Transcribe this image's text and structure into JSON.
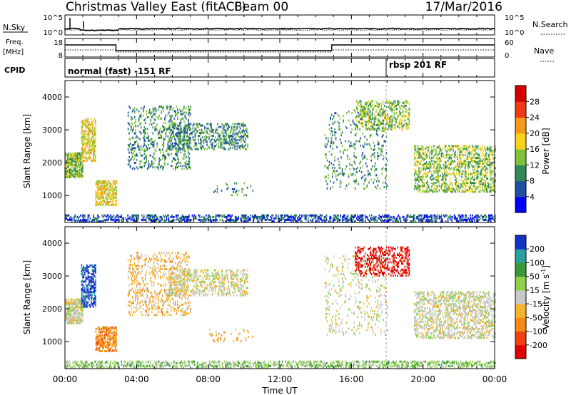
{
  "header": {
    "title": "Christmas Valley East (fitACF)",
    "beam": "Beam 00",
    "date": "17/Mar/2016"
  },
  "sky_panel": {
    "label": "N.Sky",
    "y_top": "10^5",
    "y_bottom": "10^0",
    "right_label": "N.Search",
    "right_top": "10^5",
    "right_bottom": "10^0"
  },
  "freq_panel": {
    "label_line1": "Freq.",
    "label_line2": "[MHz]",
    "y_top": "18",
    "y_bottom": "8",
    "right_label": "Nave",
    "right_top": "60",
    "right_bottom": "0"
  },
  "cpid_panel": {
    "label": "CPID",
    "mode_1": "normal (fast) -151 RF",
    "mode_2": "rbsp 201 RF"
  },
  "chart_data": [
    {
      "type": "heatmap",
      "name": "power",
      "ylabel": "Slant Range [km]",
      "yticks": [
        "1000",
        "2000",
        "3000",
        "4000"
      ],
      "ylim": [
        180,
        4500
      ],
      "xlim": [
        0,
        24
      ],
      "colorbar": {
        "label": "Power [dB]",
        "ticks": [
          "4",
          "8",
          "12",
          "16",
          "20",
          "24",
          "28"
        ],
        "colors": [
          "#0000ff",
          "#1e4fa0",
          "#2f8a55",
          "#7ec23a",
          "#f6d21a",
          "#f79a1a",
          "#ee3a14",
          "#d40000"
        ]
      }
    },
    {
      "type": "heatmap",
      "name": "velocity",
      "ylabel": "Slant Range [km]",
      "yticks": [
        "1000",
        "2000",
        "3000",
        "4000"
      ],
      "ylim": [
        180,
        4500
      ],
      "xlim": [
        0,
        24
      ],
      "colorbar": {
        "label": "Velocity [m s^-1]",
        "ticks": [
          "200",
          "100",
          "50",
          "15",
          "-15",
          "-50",
          "-100",
          "-200"
        ],
        "colors": [
          "#1432c8",
          "#2aa0a0",
          "#3a9a3a",
          "#8ed04a",
          "#c8c8c8",
          "#f5b42a",
          "#f58a14",
          "#f04010",
          "#e00000"
        ]
      }
    }
  ],
  "x_axis": {
    "ticks": [
      "00:00",
      "04:00",
      "08:00",
      "12:00",
      "16:00",
      "20:00",
      "00:00"
    ],
    "label": "Time UT"
  }
}
